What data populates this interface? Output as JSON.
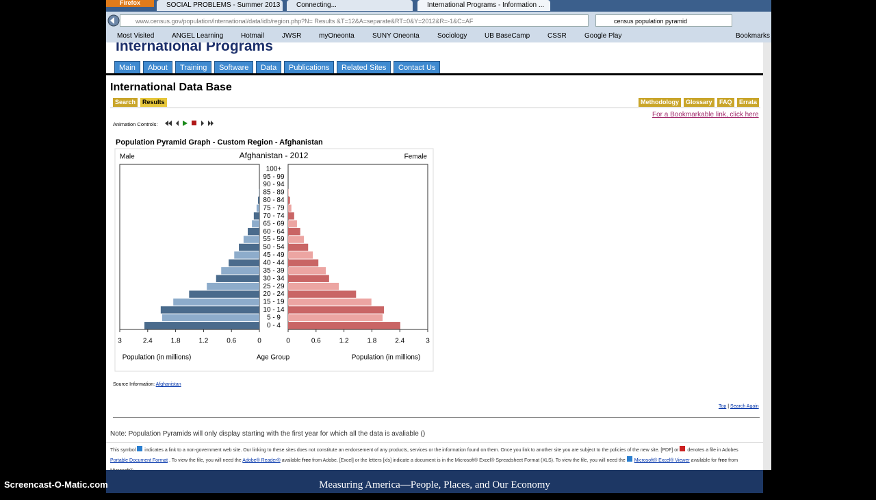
{
  "browser": {
    "firefox": "Firefox",
    "tabs": [
      "SOCIAL PROBLEMS - Summer 2013 (S...",
      "Connecting...",
      "International Programs - Information ..."
    ],
    "url": "www.census.gov/population/international/data/idb/region.php?N= Results &T=12&A=separate&RT=0&Y=2012&R=-1&C=AF",
    "search": "census population pyramid",
    "bookmarks": [
      "Most Visited",
      "ANGEL Learning",
      "Hotmail",
      "JWSR",
      "myOneonta",
      "SUNY Oneonta",
      "Sociology",
      "UB BaseCamp",
      "CSSR",
      "Google Play"
    ],
    "bookmarks_menu": "Bookmarks"
  },
  "header": {
    "site": "International Programs",
    "nav": [
      "Main",
      "About",
      "Training",
      "Software",
      "Data",
      "Publications",
      "Related Sites",
      "Contact Us"
    ]
  },
  "page": {
    "title": "International Data Base",
    "tabs_left": [
      "Search",
      "Results"
    ],
    "tabs_right": [
      "Methodology",
      "Glossary",
      "FAQ",
      "Errata"
    ],
    "bookmark_link": "For a Bookmarkable link, click here",
    "animation_label": "Animation Controls:",
    "source_label": "Source Information:",
    "source_link": "Afghanistan",
    "top_link": "Top",
    "separator": "|",
    "search_again": "Search Again",
    "note": "Note: Population Pyramids will only display starting with the first year for which all the data is avaliable ()",
    "footer": [
      "This symbol",
      "indicates a link to a non-government web site. Our linking to these sites does not constitute an endorsement of any products, services or the information found on them. Once you link to another site you are subject to the policies of the new site.",
      "[PDF] or",
      "denotes a file in Adobes",
      "Portable Document Format",
      ". To view the file, you will need the",
      "Adobe® Reader®",
      "available",
      "free",
      "from Adobe.",
      "[Excel] or the letters [xls] indicate a document is in the Microsoft® Excel® Spreadsheet Format (XLS). To view the file, you will need the",
      "Microsoft® Excel® Viewer",
      "available for",
      "free",
      "from Microsoft®."
    ],
    "banner": "Measuring America—People, Places, and Our Economy",
    "watermark": "Screencast-O-Matic.com"
  },
  "chart_data": {
    "type": "pyramid",
    "title": "Population Pyramid Graph - Custom Region - Afghanistan",
    "subtitle": "Afghanistan - 2012",
    "x_label_left": "Population (in millions)",
    "x_label_center": "Age Group",
    "x_label_right": "Population (in millions)",
    "categories": [
      "0 - 4",
      "5 - 9",
      "10 - 14",
      "15 - 19",
      "20 - 24",
      "25 - 29",
      "30 - 34",
      "35 - 39",
      "40 - 44",
      "45 - 49",
      "50 - 54",
      "55 - 59",
      "60 - 64",
      "65 - 69",
      "70 - 74",
      "75 - 79",
      "80 - 84",
      "85 - 89",
      "90 - 94",
      "95 - 99",
      "100+"
    ],
    "series": [
      {
        "name": "Male",
        "colors": [
          "#4a6b8c",
          "#8daccb"
        ],
        "values": [
          2.47,
          2.09,
          2.12,
          1.85,
          1.51,
          1.13,
          0.93,
          0.82,
          0.66,
          0.54,
          0.44,
          0.34,
          0.25,
          0.16,
          0.12,
          0.06,
          0.03,
          0.01,
          0,
          0,
          0
        ]
      },
      {
        "name": "Female",
        "colors": [
          "#c96565",
          "#eca5a2"
        ],
        "values": [
          2.41,
          2.03,
          2.06,
          1.79,
          1.46,
          1.09,
          0.88,
          0.81,
          0.65,
          0.53,
          0.43,
          0.34,
          0.26,
          0.19,
          0.13,
          0.07,
          0.04,
          0.01,
          0,
          0,
          0
        ]
      }
    ],
    "xlim": [
      0,
      3
    ],
    "xticks": [
      0,
      0.6,
      1.2,
      1.8,
      2.4,
      3
    ]
  }
}
